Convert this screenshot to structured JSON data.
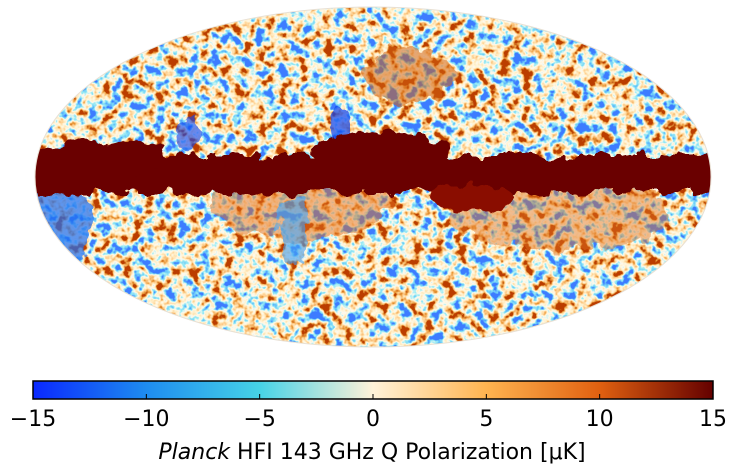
{
  "figure": {
    "caption_italic": "Planck",
    "caption_rest": "HFI 143 GHz Q Polarization [μK]",
    "colorbar": {
      "lim": [
        -15,
        15
      ],
      "ticks": [
        {
          "value": -15,
          "label": "−15"
        },
        {
          "value": -10,
          "label": "−10"
        },
        {
          "value": -5,
          "label": "−5"
        },
        0,
        5,
        10,
        15
      ],
      "colors": [
        "#0a28ff",
        "#1e8cf0",
        "#46d2e6",
        "#fff2d8",
        "#ffb450",
        "#e06010",
        "#640000"
      ]
    }
  }
}
